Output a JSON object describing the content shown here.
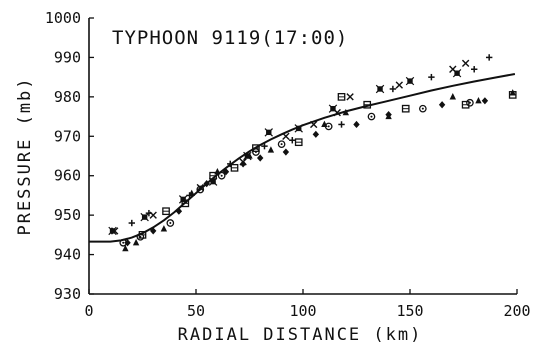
{
  "chart_data": {
    "type": "scatter",
    "title": "TYPHOON 9119(17:00)",
    "xlabel": "RADIAL DISTANCE (km)",
    "ylabel": "PRESSURE (mb)",
    "xlim": [
      0,
      200
    ],
    "ylim": [
      930,
      1000
    ],
    "x_ticks": [
      "0",
      "50",
      "100",
      "150",
      "200"
    ],
    "y_ticks": [
      "930",
      "940",
      "950",
      "960",
      "970",
      "980",
      "990",
      "1000"
    ],
    "grid": false,
    "legend": "none",
    "fit_curve": {
      "x": [
        0,
        10,
        15,
        20,
        25,
        30,
        35,
        40,
        45,
        50,
        55,
        60,
        65,
        70,
        75,
        80,
        85,
        90,
        95,
        100,
        110,
        120,
        130,
        140,
        150,
        160,
        170,
        180,
        190,
        199
      ],
      "y": [
        943.3,
        943.3,
        943.6,
        944.3,
        945.4,
        946.9,
        948.7,
        950.8,
        953.2,
        955.6,
        958.0,
        960.3,
        962.4,
        964.4,
        966.2,
        967.8,
        969.2,
        970.5,
        971.7,
        972.8,
        974.7,
        976.3,
        977.7,
        979.0,
        980.3,
        981.6,
        982.8,
        983.9,
        984.9,
        985.8
      ]
    },
    "series": [
      {
        "marker": "triangle",
        "points": [
          [
            17,
            941.5
          ],
          [
            22,
            943
          ],
          [
            35,
            946.5
          ],
          [
            48,
            955.5
          ],
          [
            60,
            961
          ],
          [
            75,
            965
          ],
          [
            85,
            966.5
          ],
          [
            110,
            973
          ],
          [
            120,
            976
          ],
          [
            140,
            975
          ],
          [
            170,
            980
          ],
          [
            182,
            979
          ],
          [
            198,
            981
          ]
        ]
      },
      {
        "marker": "diamond",
        "points": [
          [
            18,
            943
          ],
          [
            30,
            946
          ],
          [
            42,
            951
          ],
          [
            55,
            958
          ],
          [
            64,
            961
          ],
          [
            72,
            963
          ],
          [
            80,
            964.5
          ],
          [
            92,
            966
          ],
          [
            106,
            970.5
          ],
          [
            125,
            973
          ],
          [
            140,
            975.5
          ],
          [
            165,
            978
          ],
          [
            185,
            979
          ]
        ]
      },
      {
        "marker": "circle",
        "points": [
          [
            16,
            943
          ],
          [
            24,
            944.5
          ],
          [
            38,
            948
          ],
          [
            52,
            956.5
          ],
          [
            62,
            960
          ],
          [
            78,
            966
          ],
          [
            90,
            968
          ],
          [
            112,
            972.5
          ],
          [
            132,
            975
          ],
          [
            156,
            977
          ],
          [
            178,
            978.5
          ]
        ]
      },
      {
        "marker": "square",
        "points": [
          [
            25,
            945
          ],
          [
            36,
            951
          ],
          [
            45,
            953
          ],
          [
            58,
            960
          ],
          [
            68,
            962
          ],
          [
            78,
            967
          ],
          [
            98,
            968.5
          ],
          [
            118,
            980
          ],
          [
            130,
            978
          ],
          [
            148,
            977
          ],
          [
            176,
            978
          ],
          [
            198,
            980.5
          ]
        ]
      },
      {
        "marker": "plus",
        "points": [
          [
            20,
            948
          ],
          [
            28,
            950.5
          ],
          [
            47,
            955
          ],
          [
            66,
            963
          ],
          [
            82,
            967.5
          ],
          [
            95,
            969
          ],
          [
            118,
            973
          ],
          [
            142,
            982
          ],
          [
            160,
            985
          ],
          [
            180,
            987
          ],
          [
            187,
            990
          ]
        ]
      },
      {
        "marker": "cross",
        "points": [
          [
            12,
            946
          ],
          [
            30,
            950
          ],
          [
            52,
            957
          ],
          [
            72,
            963.5
          ],
          [
            92,
            970
          ],
          [
            105,
            973
          ],
          [
            116,
            976
          ],
          [
            122,
            980
          ],
          [
            145,
            983
          ],
          [
            170,
            987
          ],
          [
            176,
            988.5
          ]
        ]
      },
      {
        "marker": "star",
        "points": [
          [
            11,
            946
          ],
          [
            26,
            949.5
          ],
          [
            44,
            954
          ],
          [
            58,
            958.5
          ],
          [
            74,
            965
          ],
          [
            84,
            971
          ],
          [
            98,
            972
          ],
          [
            114,
            977
          ],
          [
            136,
            982
          ],
          [
            150,
            984
          ],
          [
            172,
            986
          ]
        ]
      }
    ]
  }
}
